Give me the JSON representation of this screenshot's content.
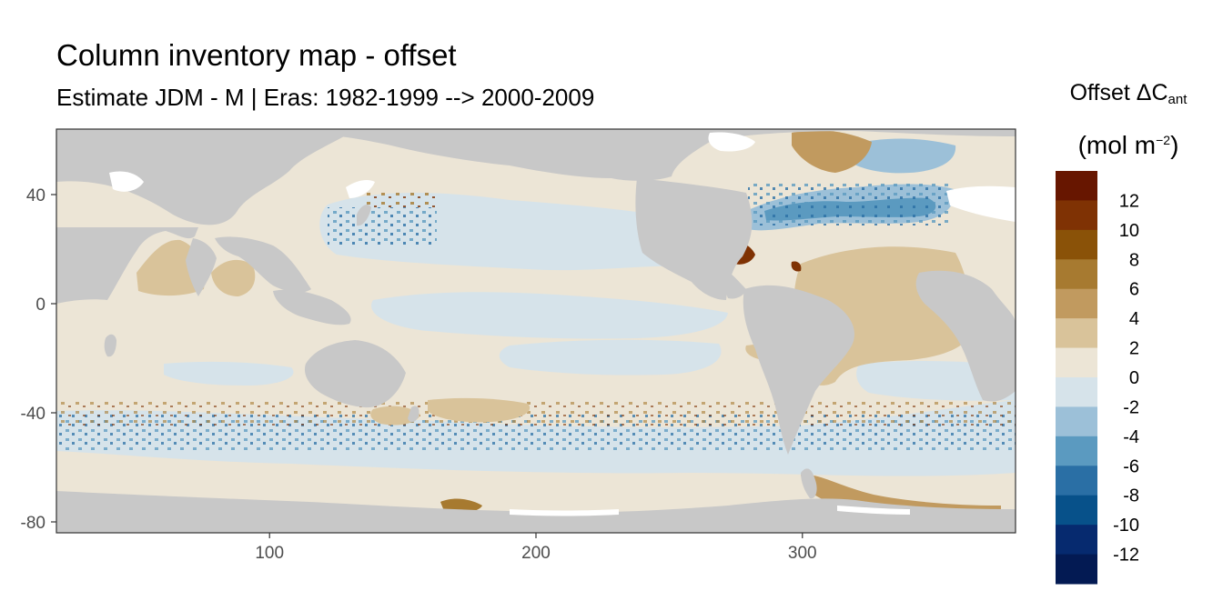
{
  "chart_data": {
    "type": "heatmap",
    "title": "Column inventory map - offset",
    "subtitle": "Estimate JDM - M | Eras: 1982-1999 --> 2000-2009",
    "legend": {
      "title_main": "Offset ΔC",
      "title_sub": "ant",
      "unit_open": "(mol m",
      "unit_sup": "−2",
      "unit_close": ")",
      "placement": "right",
      "labels": [
        "12",
        "10",
        "8",
        "6",
        "4",
        "2",
        "0",
        "-2",
        "-4",
        "-6",
        "-8",
        "-10",
        "-12"
      ],
      "colors": [
        "#671600",
        "#7f3204",
        "#8a5208",
        "#a77a30",
        "#c19a5f",
        "#d9c39a",
        "#ece5d6",
        "#d6e3ea",
        "#9cc0d8",
        "#5b9ac0",
        "#2a6fa5",
        "#07518a",
        "#062a6f",
        "#031a53"
      ]
    },
    "x_axis": {
      "ticks": [
        100,
        200,
        300
      ],
      "range": [
        20,
        380
      ]
    },
    "y_axis": {
      "ticks": [
        40,
        0,
        -40,
        -80
      ],
      "range": [
        -84,
        64
      ]
    },
    "land_color": "#c8c8c8",
    "grid": false
  }
}
